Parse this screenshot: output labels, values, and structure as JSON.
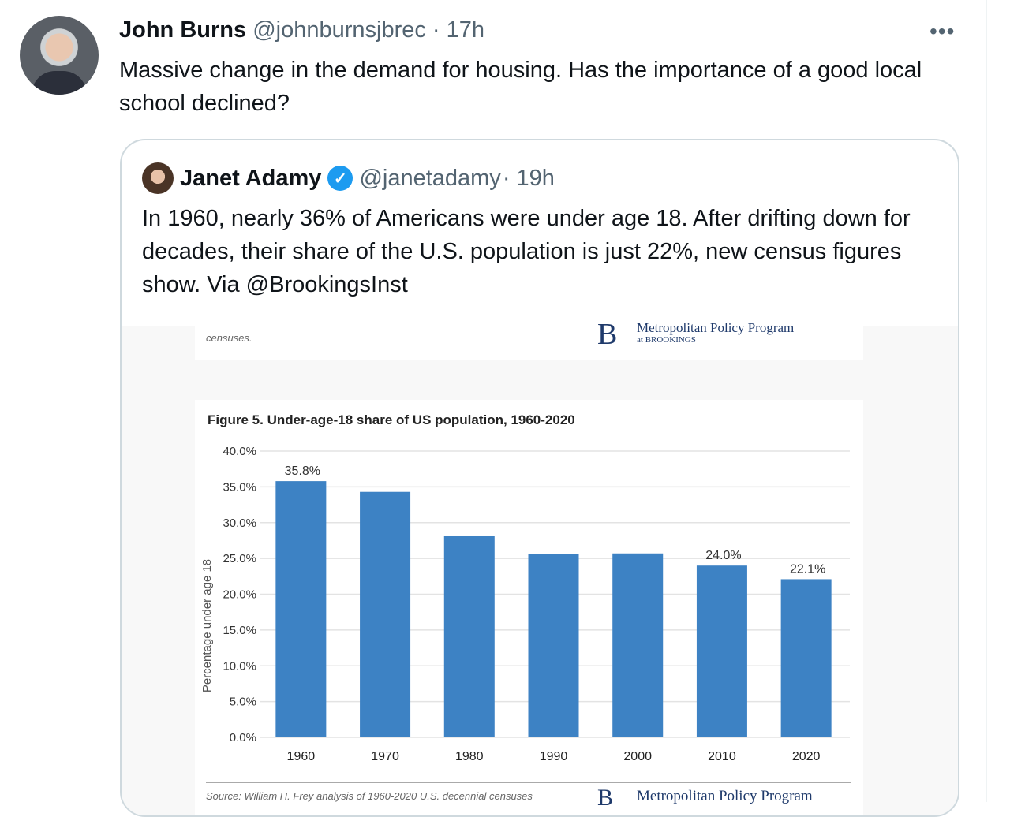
{
  "tweet": {
    "name": "John Burns",
    "handle": "@johnburnsjbrec",
    "time": "· 17h",
    "text": "Massive change in the demand for housing. Has the importance of a good local school declined?",
    "more": "•••"
  },
  "quote": {
    "name": "Janet Adamy",
    "verified": true,
    "handle": "@janetadamy",
    "time": "· 19h",
    "text": "In 1960, nearly 36% of Americans were under age 18. After drifting down for decades, their share of the U.S. population is just 22%, new census figures show. Via @BrookingsInst"
  },
  "image": {
    "top_caption": "censuses.",
    "logo_letter": "B",
    "logo_line1": "Metropolitan Policy Program",
    "logo_line2": "at BROOKINGS",
    "source": "Source: William H. Frey analysis of 1960-2020 U.S. decennial censuses"
  },
  "chart_data": {
    "type": "bar",
    "title": "Figure 5. Under-age-18 share of US population, 1960-2020",
    "xlabel": "",
    "ylabel": "Percentage under age 18",
    "categories": [
      "1960",
      "1970",
      "1980",
      "1990",
      "2000",
      "2010",
      "2020"
    ],
    "values": [
      35.8,
      34.3,
      28.1,
      25.6,
      25.7,
      24.0,
      22.1
    ],
    "data_labels": {
      "1960": "35.8%",
      "2010": "24.0%",
      "2020": "22.1%"
    },
    "yticks": [
      "0.0%",
      "5.0%",
      "10.0%",
      "15.0%",
      "20.0%",
      "25.0%",
      "30.0%",
      "35.0%",
      "40.0%"
    ],
    "ylim": [
      0,
      40
    ],
    "grid": true,
    "bar_color": "#3d82c4"
  }
}
